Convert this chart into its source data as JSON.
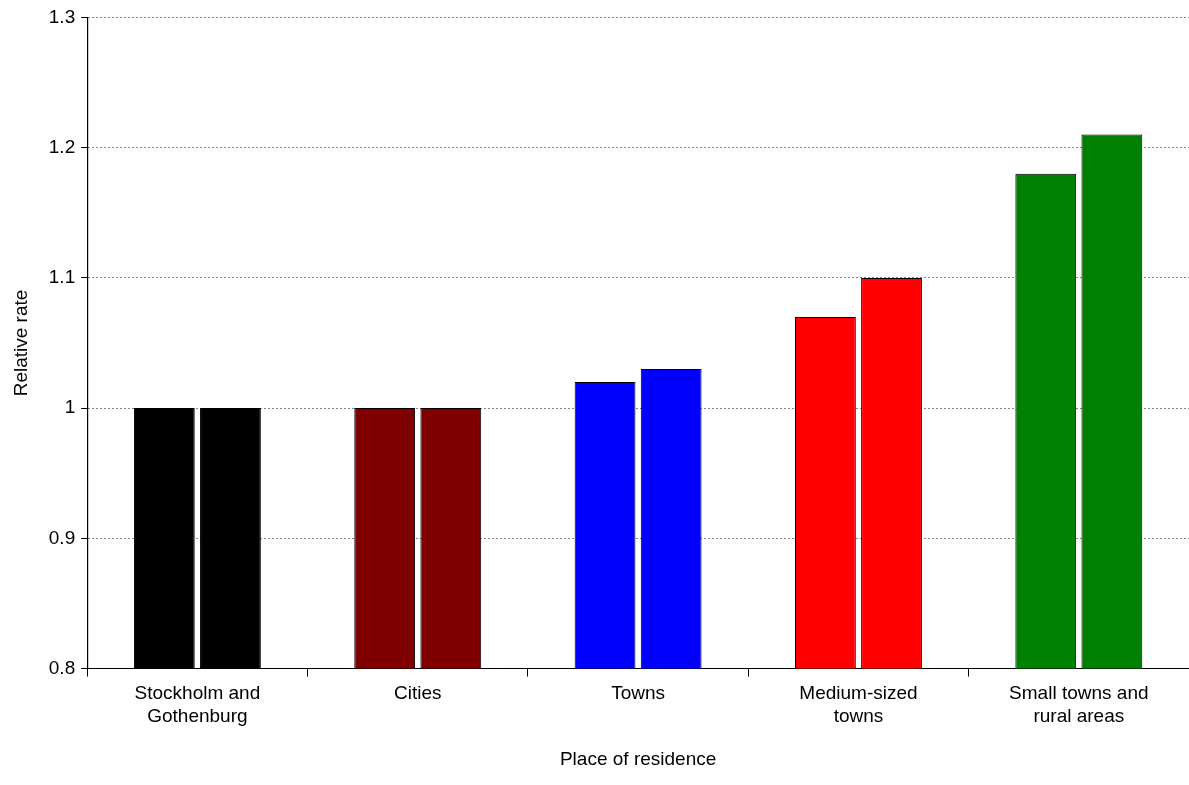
{
  "chart_data": {
    "type": "bar",
    "xlabel": "Place of residence",
    "ylabel": "Relative rate",
    "categories": [
      "Stockholm and Gothenburg",
      "Cities",
      "Towns",
      "Medium-sized towns",
      "Small towns and rural areas"
    ],
    "series": [
      {
        "colors": [
          "#000000",
          "#800000",
          "#0000ff",
          "#ff0000",
          "#008000"
        ],
        "values": [
          1.0,
          1.0,
          1.02,
          1.07,
          1.18
        ]
      },
      {
        "colors": [
          "#000000",
          "#800000",
          "#0000ff",
          "#ff0000",
          "#008000"
        ],
        "values": [
          1.0,
          1.0,
          1.03,
          1.1,
          1.21
        ]
      }
    ],
    "ylim": [
      0.8,
      1.3
    ],
    "yticks": [
      0.8,
      0.9,
      1,
      1.1,
      1.2,
      1.3
    ],
    "grid": "y",
    "legend": false
  }
}
